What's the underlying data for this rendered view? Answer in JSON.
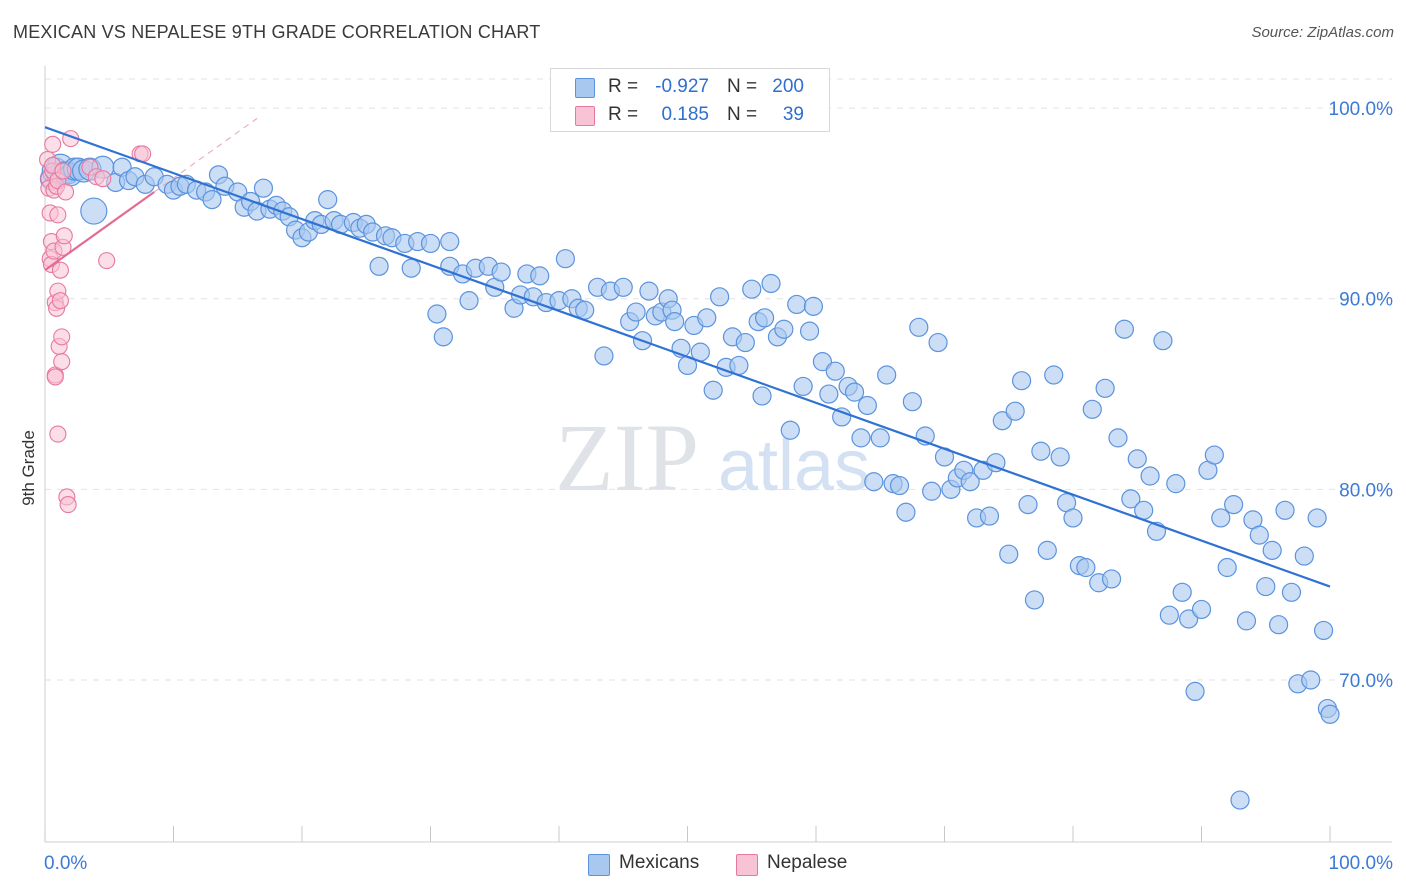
{
  "header": {
    "title": "MEXICAN VS NEPALESE 9TH GRADE CORRELATION CHART",
    "source": "Source: ZipAtlas.com"
  },
  "watermark": {
    "zip": "ZIP",
    "atlas": "atlas"
  },
  "legend": {
    "r_label": "R =",
    "n_label": "N =",
    "rows": [
      {
        "name": "Mexicans",
        "r": "-0.927",
        "n": "200",
        "color": "#8fb8ec",
        "text_color": "#2e6fcf"
      },
      {
        "name": "Nepalese",
        "r": "0.185",
        "n": "39",
        "color": "#f5aac4",
        "text_color": "#2e6fcf"
      }
    ]
  },
  "bottom_legend": [
    {
      "label": "Mexicans",
      "color": "#8fb8ec"
    },
    {
      "label": "Nepalese",
      "color": "#f5aac4"
    }
  ],
  "chart_data": {
    "type": "scatter",
    "title": "MEXICAN VS NEPALESE 9TH GRADE CORRELATION CHART",
    "xlabel": "",
    "ylabel": "9th Grade",
    "xlim": [
      0,
      100
    ],
    "ylim": [
      61.5,
      102
    ],
    "x_tick_labels": [
      "0.0%",
      "100.0%"
    ],
    "y_ticks": [
      100,
      90,
      80,
      70
    ],
    "y_tick_labels": [
      "100.0%",
      "90.0%",
      "80.0%",
      "70.0%"
    ],
    "grid": "horizontal dashed",
    "legend_position": "top-center",
    "series": [
      {
        "name": "Mexicans",
        "color": "#5b93de",
        "fill": "#a9c8f0",
        "trend": {
          "x": [
            0,
            100
          ],
          "y": [
            99.0,
            74.9
          ]
        },
        "points": [
          [
            0.5,
            96.3
          ],
          [
            0.8,
            96.7
          ],
          [
            1.0,
            96.5
          ],
          [
            1.2,
            96.9
          ],
          [
            1.5,
            96.6
          ],
          [
            1.8,
            96.6
          ],
          [
            2.0,
            96.5
          ],
          [
            2.3,
            96.8
          ],
          [
            2.6,
            96.8
          ],
          [
            3.0,
            96.7
          ],
          [
            3.5,
            96.8
          ],
          [
            3.8,
            94.6
          ],
          [
            4.5,
            96.9
          ],
          [
            5.5,
            96.1
          ],
          [
            6.0,
            96.9
          ],
          [
            6.5,
            96.2
          ],
          [
            7.0,
            96.4
          ],
          [
            7.8,
            96.0
          ],
          [
            8.5,
            96.4
          ],
          [
            9.5,
            96.0
          ],
          [
            10.0,
            95.7
          ],
          [
            10.5,
            95.9
          ],
          [
            11.0,
            96.0
          ],
          [
            11.8,
            95.7
          ],
          [
            12.5,
            95.6
          ],
          [
            13.0,
            95.2
          ],
          [
            13.5,
            96.5
          ],
          [
            14.0,
            95.9
          ],
          [
            15.0,
            95.6
          ],
          [
            15.5,
            94.8
          ],
          [
            16.0,
            95.1
          ],
          [
            16.5,
            94.6
          ],
          [
            17.0,
            95.8
          ],
          [
            17.5,
            94.7
          ],
          [
            18.0,
            94.9
          ],
          [
            18.5,
            94.6
          ],
          [
            19.0,
            94.3
          ],
          [
            19.5,
            93.6
          ],
          [
            20.0,
            93.2
          ],
          [
            20.5,
            93.5
          ],
          [
            21.0,
            94.1
          ],
          [
            21.5,
            93.9
          ],
          [
            22.0,
            95.2
          ],
          [
            22.5,
            94.1
          ],
          [
            23.0,
            93.9
          ],
          [
            24.0,
            94.0
          ],
          [
            24.5,
            93.7
          ],
          [
            25.0,
            93.9
          ],
          [
            25.5,
            93.5
          ],
          [
            26.0,
            91.7
          ],
          [
            26.5,
            93.3
          ],
          [
            27.0,
            93.2
          ],
          [
            28.0,
            92.9
          ],
          [
            28.5,
            91.6
          ],
          [
            29.0,
            93.0
          ],
          [
            30.0,
            92.9
          ],
          [
            30.5,
            89.2
          ],
          [
            31.0,
            88.0
          ],
          [
            31.5,
            93.0
          ],
          [
            31.5,
            91.7
          ],
          [
            32.5,
            91.3
          ],
          [
            33.0,
            89.9
          ],
          [
            33.5,
            91.6
          ],
          [
            34.5,
            91.7
          ],
          [
            35.0,
            90.6
          ],
          [
            35.5,
            91.4
          ],
          [
            36.5,
            89.5
          ],
          [
            37.0,
            90.2
          ],
          [
            37.5,
            91.3
          ],
          [
            38.0,
            90.1
          ],
          [
            38.5,
            91.2
          ],
          [
            39.0,
            89.8
          ],
          [
            40.0,
            89.9
          ],
          [
            40.5,
            92.1
          ],
          [
            41.0,
            90.0
          ],
          [
            41.5,
            89.5
          ],
          [
            42.0,
            89.4
          ],
          [
            43.0,
            90.6
          ],
          [
            43.5,
            87.0
          ],
          [
            44.0,
            90.4
          ],
          [
            45.0,
            90.6
          ],
          [
            45.5,
            88.8
          ],
          [
            46.0,
            89.3
          ],
          [
            46.5,
            87.8
          ],
          [
            47.0,
            90.4
          ],
          [
            47.5,
            89.1
          ],
          [
            48.0,
            89.3
          ],
          [
            48.5,
            90.0
          ],
          [
            48.8,
            89.4
          ],
          [
            49.0,
            88.8
          ],
          [
            49.5,
            87.4
          ],
          [
            50.0,
            86.5
          ],
          [
            50.5,
            88.6
          ],
          [
            51.0,
            87.2
          ],
          [
            51.5,
            89.0
          ],
          [
            52.0,
            85.2
          ],
          [
            52.5,
            90.1
          ],
          [
            53.0,
            86.4
          ],
          [
            53.5,
            88.0
          ],
          [
            54.0,
            86.5
          ],
          [
            54.5,
            87.7
          ],
          [
            55.0,
            90.5
          ],
          [
            55.5,
            88.8
          ],
          [
            55.8,
            84.9
          ],
          [
            56.0,
            89.0
          ],
          [
            56.5,
            90.8
          ],
          [
            57.0,
            88.0
          ],
          [
            57.5,
            88.4
          ],
          [
            58.0,
            83.1
          ],
          [
            58.5,
            89.7
          ],
          [
            59.0,
            85.4
          ],
          [
            59.5,
            88.3
          ],
          [
            59.8,
            89.6
          ],
          [
            60.5,
            86.7
          ],
          [
            61.0,
            85.0
          ],
          [
            61.5,
            86.2
          ],
          [
            62.0,
            83.8
          ],
          [
            62.5,
            85.4
          ],
          [
            63.0,
            85.1
          ],
          [
            63.5,
            82.7
          ],
          [
            64.0,
            84.4
          ],
          [
            64.5,
            80.4
          ],
          [
            65.0,
            82.7
          ],
          [
            65.5,
            86.0
          ],
          [
            66.0,
            80.3
          ],
          [
            66.5,
            80.2
          ],
          [
            67.0,
            78.8
          ],
          [
            67.5,
            84.6
          ],
          [
            68.0,
            88.5
          ],
          [
            68.5,
            82.8
          ],
          [
            69.0,
            79.9
          ],
          [
            69.5,
            87.7
          ],
          [
            70.0,
            81.7
          ],
          [
            70.5,
            80.0
          ],
          [
            71.0,
            80.6
          ],
          [
            71.5,
            81.0
          ],
          [
            72.0,
            80.4
          ],
          [
            72.5,
            78.5
          ],
          [
            73.0,
            81.0
          ],
          [
            73.5,
            78.6
          ],
          [
            74.0,
            81.4
          ],
          [
            74.5,
            83.6
          ],
          [
            75.0,
            76.6
          ],
          [
            75.5,
            84.1
          ],
          [
            76.0,
            85.7
          ],
          [
            76.5,
            79.2
          ],
          [
            77.0,
            74.2
          ],
          [
            77.5,
            82.0
          ],
          [
            78.0,
            76.8
          ],
          [
            78.5,
            86.0
          ],
          [
            79.0,
            81.7
          ],
          [
            79.5,
            79.3
          ],
          [
            80.0,
            78.5
          ],
          [
            80.5,
            76.0
          ],
          [
            81.0,
            75.9
          ],
          [
            81.5,
            84.2
          ],
          [
            82.0,
            75.1
          ],
          [
            82.5,
            85.3
          ],
          [
            83.0,
            75.3
          ],
          [
            83.5,
            82.7
          ],
          [
            84.0,
            88.4
          ],
          [
            84.5,
            79.5
          ],
          [
            85.0,
            81.6
          ],
          [
            85.5,
            78.9
          ],
          [
            86.0,
            80.7
          ],
          [
            86.5,
            77.8
          ],
          [
            87.0,
            87.8
          ],
          [
            87.5,
            73.4
          ],
          [
            88.0,
            80.3
          ],
          [
            88.5,
            74.6
          ],
          [
            89.0,
            73.2
          ],
          [
            89.5,
            69.4
          ],
          [
            90.0,
            73.7
          ],
          [
            90.5,
            81.0
          ],
          [
            91.0,
            81.8
          ],
          [
            91.5,
            78.5
          ],
          [
            92.0,
            75.9
          ],
          [
            92.5,
            79.2
          ],
          [
            93.0,
            63.7
          ],
          [
            93.5,
            73.1
          ],
          [
            94.0,
            78.4
          ],
          [
            94.5,
            77.6
          ],
          [
            95.0,
            74.9
          ],
          [
            95.5,
            76.8
          ],
          [
            96.0,
            72.9
          ],
          [
            96.5,
            78.9
          ],
          [
            97.0,
            74.6
          ],
          [
            97.5,
            69.8
          ],
          [
            98.0,
            76.5
          ],
          [
            98.5,
            70.0
          ],
          [
            99.0,
            78.5
          ],
          [
            99.5,
            72.6
          ],
          [
            99.8,
            68.5
          ],
          [
            100.0,
            68.2
          ]
        ]
      },
      {
        "name": "Nepalese",
        "color": "#e8789e",
        "fill": "#f7c3d5",
        "trend": {
          "x": [
            0,
            8.5
          ],
          "y": [
            91.5,
            95.6
          ]
        },
        "points": [
          [
            0.2,
            97.3
          ],
          [
            0.3,
            96.3
          ],
          [
            0.3,
            95.8
          ],
          [
            0.4,
            94.5
          ],
          [
            0.4,
            92.1
          ],
          [
            0.5,
            91.8
          ],
          [
            0.5,
            93.0
          ],
          [
            0.6,
            96.7
          ],
          [
            0.6,
            98.1
          ],
          [
            0.6,
            97.0
          ],
          [
            0.7,
            95.7
          ],
          [
            0.7,
            92.5
          ],
          [
            0.8,
            89.8
          ],
          [
            0.8,
            86.0
          ],
          [
            0.8,
            85.9
          ],
          [
            0.9,
            89.5
          ],
          [
            0.9,
            95.9
          ],
          [
            1.0,
            96.2
          ],
          [
            1.0,
            94.4
          ],
          [
            1.0,
            90.4
          ],
          [
            1.0,
            82.9
          ],
          [
            1.1,
            87.5
          ],
          [
            1.2,
            89.9
          ],
          [
            1.2,
            91.5
          ],
          [
            1.3,
            86.7
          ],
          [
            1.3,
            88.0
          ],
          [
            1.4,
            96.7
          ],
          [
            1.4,
            92.7
          ],
          [
            1.5,
            93.3
          ],
          [
            1.6,
            95.6
          ],
          [
            1.7,
            79.6
          ],
          [
            1.8,
            79.2
          ],
          [
            2.0,
            98.4
          ],
          [
            3.5,
            96.9
          ],
          [
            4.0,
            96.4
          ],
          [
            4.5,
            96.3
          ],
          [
            4.8,
            92.0
          ],
          [
            7.4,
            97.6
          ],
          [
            7.6,
            97.6
          ]
        ]
      }
    ]
  }
}
